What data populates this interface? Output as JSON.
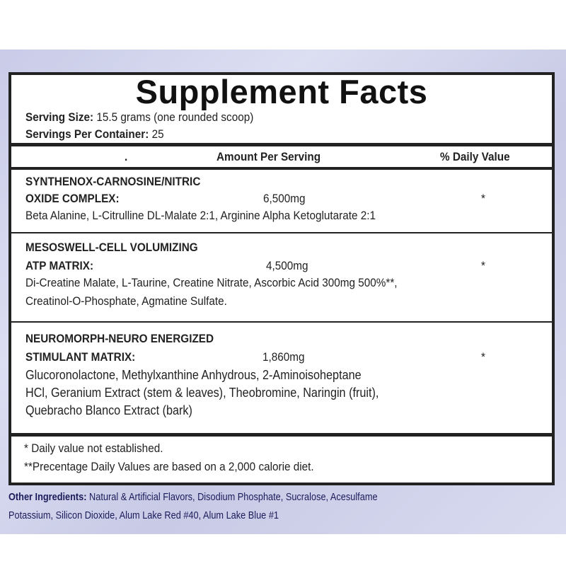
{
  "title": "Supplement Facts",
  "serving_size": {
    "label": "Serving Size:",
    "value": "15.5 grams (one rounded scoop)"
  },
  "servings_per_container": {
    "label": "Servings Per Container:",
    "value": "25"
  },
  "header": {
    "marker": ".",
    "amount": "Amount Per Serving",
    "dv": "% Daily Value"
  },
  "sections": [
    {
      "name_line1": "SYNTHENOX-CARNOSINE/NITRIC",
      "name_line2": "OXIDE COMPLEX:",
      "amount": "6,500mg",
      "dv": "*",
      "ingredients": [
        "Beta Alanine, L-Citrulline DL-Malate 2:1, Arginine Alpha Ketoglutarate 2:1"
      ]
    },
    {
      "name_line1": "MESOSWELL-CELL VOLUMIZING",
      "name_line2": "ATP MATRIX:",
      "amount": "4,500mg",
      "dv": "*",
      "ingredients": [
        "Di-Creatine Malate, L-Taurine, Creatine Nitrate, Ascorbic Acid 300mg  500%**,",
        "Creatinol-O-Phosphate, Agmatine Sulfate."
      ]
    },
    {
      "name_line1": "NEUROMORPH-NEURO ENERGIZED",
      "name_line2": "STIMULANT MATRIX:",
      "amount": "1,860mg",
      "dv": "*",
      "ingredients": [
        "Glucoronolactone, Methylxanthine Anhydrous, 2-Aminoisoheptane",
        "HCl, Geranium Extract (stem & leaves), Theobromine, Naringin (fruit),",
        "Quebracho Blanco Extract (bark)"
      ]
    }
  ],
  "footnotes": [
    "* Daily value not established.",
    "**Precentage Daily Values are based on a 2,000 calorie diet."
  ],
  "other_ingredients": {
    "label": "Other Ingredients:",
    "line1": "Natural & Artificial Flavors, Disodium Phosphate, Sucralose, Acesulfame",
    "line2": "Potassium, Silicon Dioxide, Alum Lake Red #40, Alum Lake Blue #1"
  }
}
